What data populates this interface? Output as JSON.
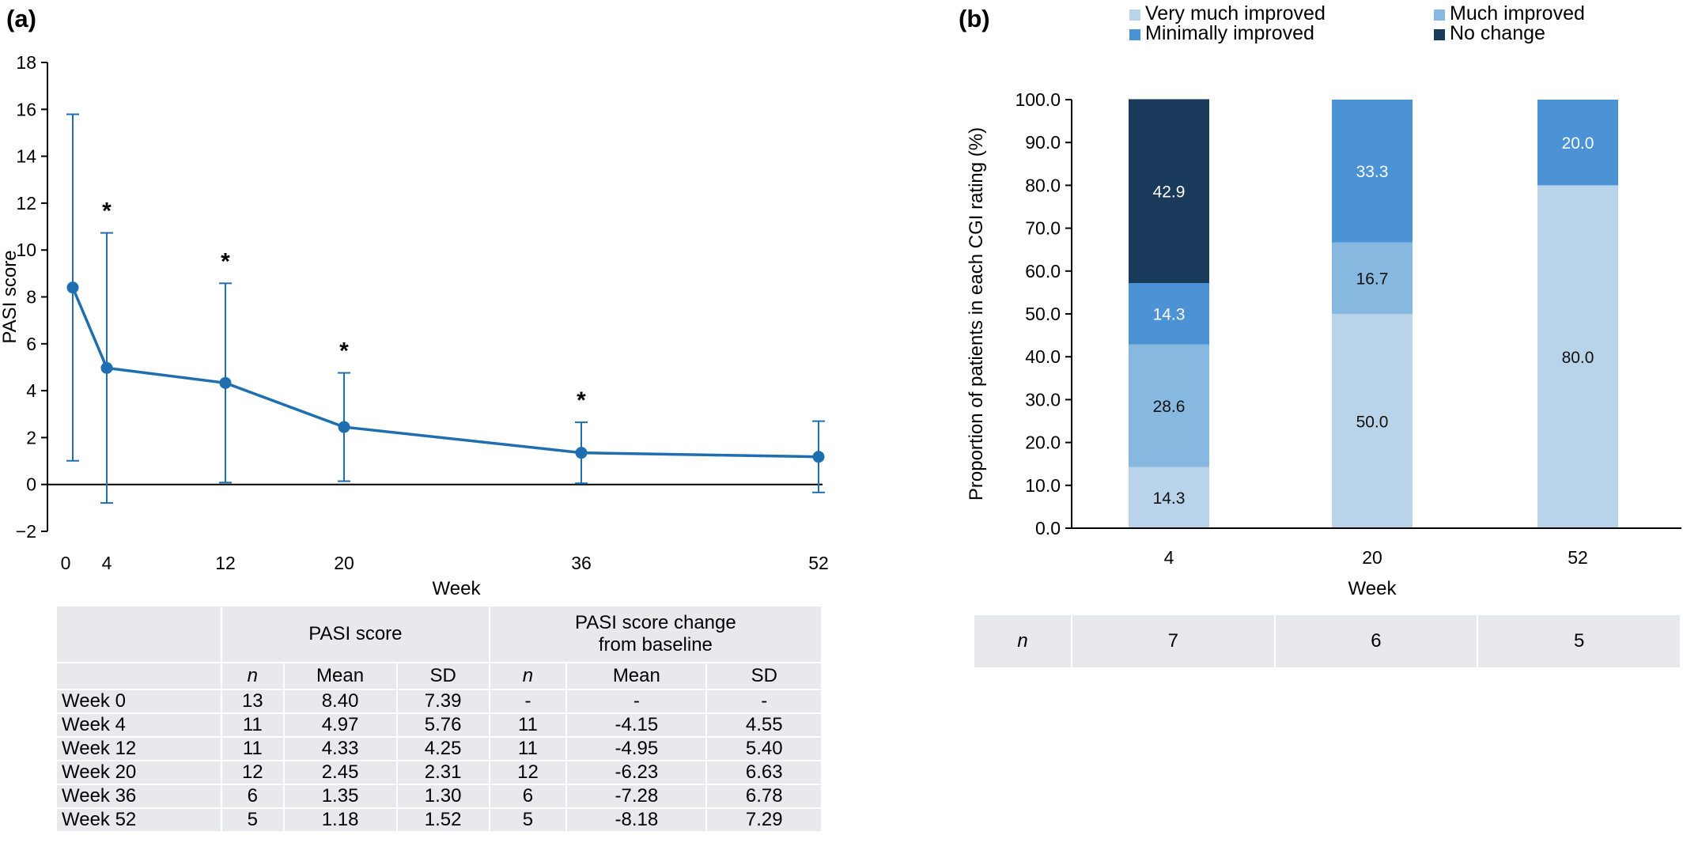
{
  "panel_a": {
    "label": "(a)",
    "stats_table": {
      "group1": "PASI score",
      "group2": [
        "PASI score change",
        "from baseline"
      ],
      "subheaders": [
        "n",
        "Mean",
        "SD",
        "n",
        "Mean",
        "SD"
      ],
      "rows": [
        {
          "label": "Week 0",
          "cells": [
            "13",
            "8.40",
            "7.39",
            "-",
            "-",
            "-"
          ]
        },
        {
          "label": "Week 4",
          "cells": [
            "11",
            "4.97",
            "5.76",
            "11",
            "-4.15",
            "4.55"
          ]
        },
        {
          "label": "Week 12",
          "cells": [
            "11",
            "4.33",
            "4.25",
            "11",
            "-4.95",
            "5.40"
          ]
        },
        {
          "label": "Week 20",
          "cells": [
            "12",
            "2.45",
            "2.31",
            "12",
            "-6.23",
            "6.63"
          ]
        },
        {
          "label": "Week 36",
          "cells": [
            "6",
            "1.35",
            "1.30",
            "6",
            "-7.28",
            "6.78"
          ]
        },
        {
          "label": "Week 52",
          "cells": [
            "5",
            "1.18",
            "1.52",
            "5",
            "-8.18",
            "7.29"
          ]
        }
      ]
    }
  },
  "panel_b": {
    "label": "(b)",
    "n_table": {
      "label": "n",
      "values": [
        "7",
        "6",
        "5"
      ]
    }
  },
  "chart_data": [
    {
      "type": "line",
      "xlabel": "Week",
      "ylabel": "PASI score",
      "x": [
        0,
        4,
        12,
        20,
        36,
        52
      ],
      "xticks": [
        0,
        4,
        12,
        20,
        36,
        52
      ],
      "xtick_labels": [
        "0",
        "4",
        "12",
        "20",
        "36",
        "52"
      ],
      "ylim": [
        -2,
        18
      ],
      "yticks": [
        -2,
        0,
        2,
        4,
        6,
        8,
        10,
        12,
        14,
        16,
        18
      ],
      "ytick_labels": [
        "−2",
        "0",
        "2",
        "4",
        "6",
        "8",
        "10",
        "12",
        "14",
        "16",
        "18"
      ],
      "series": [
        {
          "values": [
            8.4,
            4.97,
            4.33,
            2.45,
            1.35,
            1.18
          ],
          "error_sd": [
            7.39,
            5.76,
            4.25,
            2.31,
            1.3,
            1.52
          ],
          "significant": [
            false,
            true,
            true,
            true,
            true,
            false
          ],
          "color": "#1f6eb0"
        }
      ],
      "significance_marker": "*",
      "grid": false
    },
    {
      "type": "bar",
      "stacked": true,
      "categories": [
        "4",
        "20",
        "52"
      ],
      "xlabel": "Week",
      "ylabel": "Proportion of patients in each CGI rating (%)",
      "ylim": [
        0,
        100
      ],
      "yticks": [
        0,
        10,
        20,
        30,
        40,
        50,
        60,
        70,
        80,
        90,
        100
      ],
      "ytick_labels": [
        "0.0",
        "10.0",
        "20.0",
        "30.0",
        "40.0",
        "50.0",
        "60.0",
        "70.0",
        "80.0",
        "90.0",
        "100.0"
      ],
      "legend_position": "top",
      "series": [
        {
          "name": "Very much improved",
          "color": "#b8d3ea",
          "values": [
            14.3,
            50.0,
            80.0
          ],
          "labels": [
            "14.3",
            "50.0",
            "80.0"
          ],
          "label_color": "#111111"
        },
        {
          "name": "Much improved",
          "color": "#86b8e0",
          "values": [
            28.6,
            16.7,
            0
          ],
          "labels": [
            "28.6",
            "16.7",
            ""
          ],
          "label_color": "#111111"
        },
        {
          "name": "Minimally improved",
          "color": "#4c93d6",
          "values": [
            14.3,
            33.3,
            20.0
          ],
          "labels": [
            "14.3",
            "33.3",
            "20.0"
          ],
          "label_color": "#ffffff"
        },
        {
          "name": "No change",
          "color": "#1a3a5c",
          "values": [
            42.9,
            0,
            0
          ],
          "labels": [
            "42.9",
            "",
            ""
          ],
          "label_color": "#ffffff"
        }
      ],
      "grid": false
    }
  ]
}
